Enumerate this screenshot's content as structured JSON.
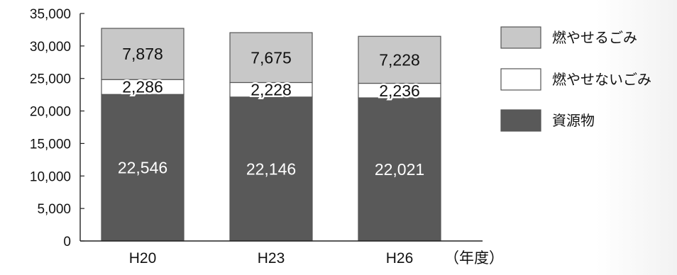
{
  "chart_data": {
    "type": "bar",
    "stacked": true,
    "categories": [
      "H20",
      "H23",
      "H26"
    ],
    "series": [
      {
        "name": "資源物",
        "values": [
          22546,
          22146,
          22021
        ],
        "color": "#595959",
        "label_color": "#ffffff"
      },
      {
        "name": "燃やせないごみ",
        "values": [
          2286,
          2228,
          2236
        ],
        "color": "#ffffff",
        "label_color": "#111111"
      },
      {
        "name": "燃やせるごみ",
        "values": [
          7878,
          7675,
          7228
        ],
        "color": "#c8c8c8",
        "label_color": "#111111"
      }
    ],
    "title": "",
    "xlabel": "（年度）",
    "ylabel": "",
    "ylim": [
      0,
      35000
    ],
    "yticks": [
      0,
      5000,
      10000,
      15000,
      20000,
      25000,
      30000,
      35000
    ],
    "grid": false,
    "legend_position": "right",
    "data_labels": true
  }
}
